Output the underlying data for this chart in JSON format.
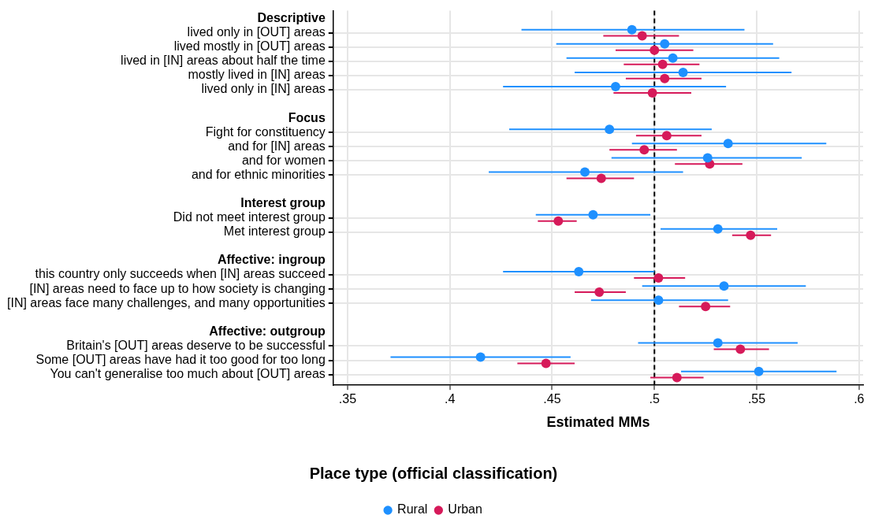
{
  "chart_data": {
    "type": "scatter",
    "orientation": "horizontal",
    "xlabel": "Estimated MMs",
    "legend_title": "Place type (official classification)",
    "categories": [
      "Descriptive",
      "lived only in [OUT] areas",
      "lived mostly in [OUT] areas",
      "lived in [IN] areas about half the time",
      "mostly lived in [IN] areas",
      "lived only in [IN] areas",
      null,
      "Focus",
      "Fight for constituency",
      "and for [IN] areas",
      "and for women",
      "and for ethnic minorities",
      null,
      "Interest group",
      "Did not meet interest group",
      "Met interest group",
      null,
      "Affective: ingroup",
      "this country only succeeds when [IN] areas succeed",
      "[IN] areas need to face up to how society is changing",
      "[IN] areas face many challenges, and many opportunities",
      null,
      "Affective: outgroup",
      "Britain's [OUT] areas deserve to be successful",
      "Some [OUT] areas have had it too good for too long",
      "You can't generalise too much about [OUT] areas"
    ],
    "series": [
      {
        "name": "Rural",
        "color": "#1e90ff",
        "values": [
          null,
          0.489,
          0.505,
          0.509,
          0.514,
          0.481,
          null,
          null,
          0.478,
          0.536,
          0.526,
          0.466,
          null,
          null,
          0.47,
          0.531,
          null,
          null,
          0.463,
          0.534,
          0.502,
          null,
          null,
          0.531,
          0.415,
          0.551
        ],
        "errors": [
          null,
          [
            0.435,
            0.544
          ],
          [
            0.452,
            0.558
          ],
          [
            0.457,
            0.561
          ],
          [
            0.461,
            0.567
          ],
          [
            0.426,
            0.535
          ],
          null,
          null,
          [
            0.429,
            0.528
          ],
          [
            0.489,
            0.584
          ],
          [
            0.479,
            0.572
          ],
          [
            0.419,
            0.514
          ],
          null,
          null,
          [
            0.442,
            0.498
          ],
          [
            0.503,
            0.56
          ],
          null,
          null,
          [
            0.426,
            0.5
          ],
          [
            0.494,
            0.574
          ],
          [
            0.469,
            0.536
          ],
          null,
          null,
          [
            0.492,
            0.57
          ],
          [
            0.371,
            0.459
          ],
          [
            0.513,
            0.589
          ]
        ]
      },
      {
        "name": "Urban",
        "color": "#d61a5a",
        "values": [
          null,
          0.494,
          0.5,
          0.504,
          0.505,
          0.499,
          null,
          null,
          0.506,
          0.495,
          0.527,
          0.474,
          null,
          null,
          0.453,
          0.547,
          null,
          null,
          0.502,
          0.473,
          0.525,
          null,
          null,
          0.542,
          0.447,
          0.511
        ],
        "errors": [
          null,
          [
            0.475,
            0.512
          ],
          [
            0.481,
            0.519
          ],
          [
            0.485,
            0.522
          ],
          [
            0.486,
            0.523
          ],
          [
            0.48,
            0.518
          ],
          null,
          null,
          [
            0.491,
            0.523
          ],
          [
            0.478,
            0.511
          ],
          [
            0.51,
            0.543
          ],
          [
            0.457,
            0.49
          ],
          null,
          null,
          [
            0.443,
            0.462
          ],
          [
            0.538,
            0.557
          ],
          null,
          null,
          [
            0.49,
            0.515
          ],
          [
            0.461,
            0.486
          ],
          [
            0.512,
            0.537
          ],
          null,
          null,
          [
            0.529,
            0.556
          ],
          [
            0.433,
            0.461
          ],
          [
            0.498,
            0.524
          ]
        ]
      }
    ],
    "xlim": [
      0.343,
      0.602
    ],
    "xticks": [
      {
        "value": 0.35,
        "label": ".35"
      },
      {
        "value": 0.4,
        "label": ".4"
      },
      {
        "value": 0.45,
        "label": ".45"
      },
      {
        "value": 0.5,
        "label": ".5"
      },
      {
        "value": 0.55,
        "label": ".55"
      },
      {
        "value": 0.6,
        "label": ".6"
      }
    ],
    "ref_lines": [
      {
        "axis": "x",
        "value": 0.5,
        "color": "#000000",
        "line_style": "dashed"
      }
    ],
    "grid": true,
    "legend": "bottom",
    "marker": "circle"
  }
}
